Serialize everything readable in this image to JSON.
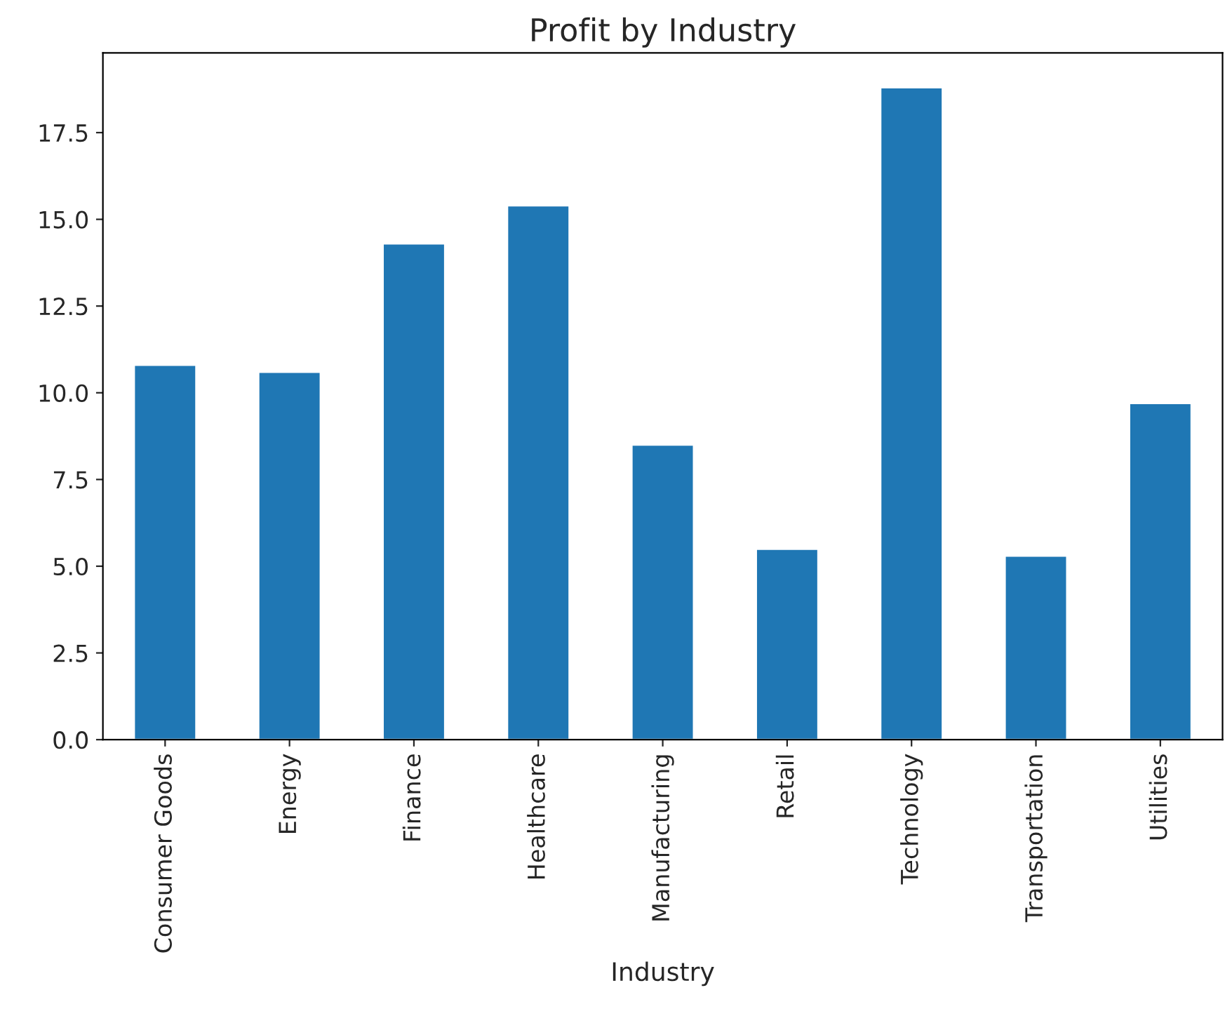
{
  "chart_data": {
    "type": "bar",
    "title": "Profit by Industry",
    "xlabel": "Industry",
    "categories": [
      "Consumer Goods",
      "Energy",
      "Finance",
      "Healthcare",
      "Manufacturing",
      "Retail",
      "Technology",
      "Transportation",
      "Utilities"
    ],
    "values": [
      10.8,
      10.6,
      14.3,
      15.4,
      8.5,
      5.5,
      18.8,
      5.3,
      9.7
    ],
    "color": "#1f77b4",
    "ylim": [
      0,
      19.8
    ],
    "yticks": [
      {
        "value": 0,
        "label": "0.0"
      },
      {
        "value": 2.5,
        "label": "2.5"
      },
      {
        "value": 5,
        "label": "5.0"
      },
      {
        "value": 7.5,
        "label": "7.5"
      },
      {
        "value": 10,
        "label": "10.0"
      },
      {
        "value": 12.5,
        "label": "12.5"
      },
      {
        "value": 15,
        "label": "15.0"
      },
      {
        "value": 17.5,
        "label": "17.5"
      }
    ],
    "grid": false,
    "legend": false
  }
}
